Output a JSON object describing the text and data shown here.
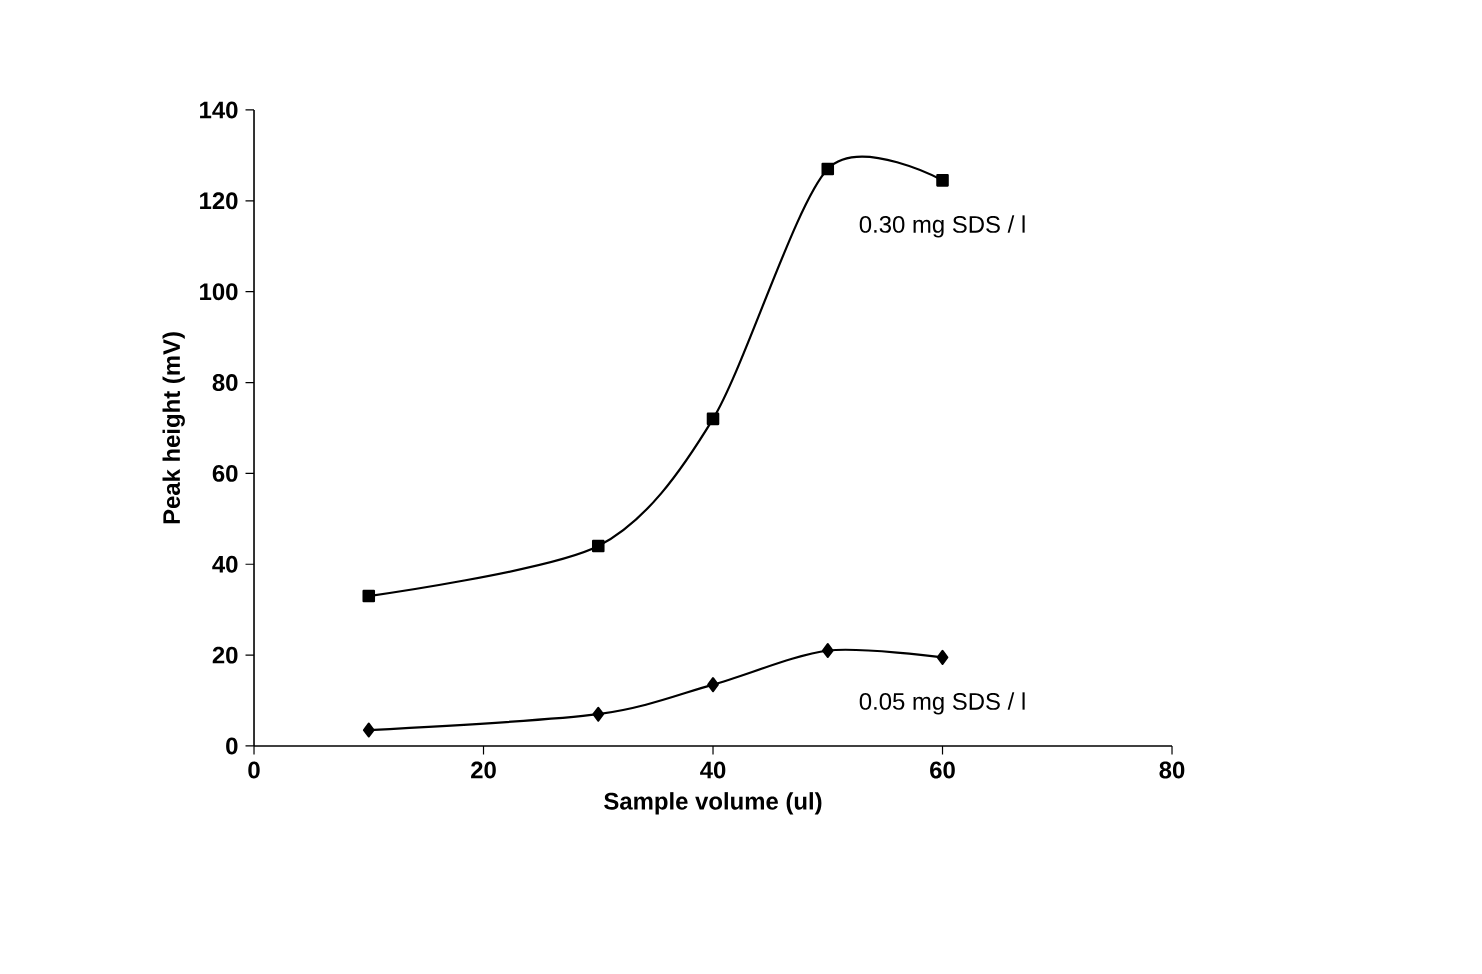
{
  "chart_data": {
    "type": "line",
    "xlabel": "Sample volume (ul)",
    "ylabel": "Peak height (mV)",
    "xlim": [
      0,
      80
    ],
    "ylim": [
      0,
      140
    ],
    "xticks": [
      0,
      20,
      40,
      60,
      80
    ],
    "yticks": [
      0,
      20,
      40,
      60,
      80,
      100,
      120,
      140
    ],
    "series": [
      {
        "name": "0.30 mg SDS / l",
        "color": "#000000",
        "marker": "square",
        "x": [
          10,
          30,
          40,
          50,
          60
        ],
        "values": [
          33,
          44,
          72,
          127,
          124.5
        ]
      },
      {
        "name": "0.05 mg SDS / l",
        "color": "#000000",
        "marker": "diamond",
        "x": [
          10,
          30,
          40,
          50,
          60
        ],
        "values": [
          3.5,
          7,
          13.5,
          21,
          19.5
        ]
      }
    ]
  }
}
